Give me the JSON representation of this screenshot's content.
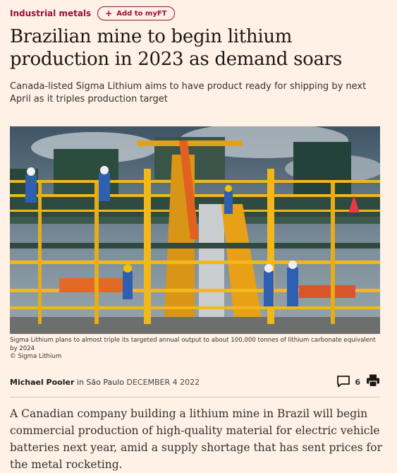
{
  "topic": {
    "label": "Industrial metals"
  },
  "myft": {
    "label": "Add to myFT",
    "icon": "plus-icon"
  },
  "headline": "Brazilian mine to begin lithium production in 2023 as demand soars",
  "standfirst": "Canada-listed Sigma Lithium aims to have product ready for shipping by next April as it triples production target",
  "image": {
    "caption": "Sigma Lithium plans to almost triple its targeted annual output to about 100,000 tonnes of lithium carbonate equivalent by 2024",
    "credit": "© Sigma Lithium"
  },
  "byline": {
    "author": "Michael Pooler",
    "location": " in São Paulo ",
    "date": "DECEMBER 4 2022"
  },
  "tools": {
    "comment_count": "6",
    "comment_icon": "comment-icon",
    "print_icon": "printer-icon"
  },
  "body": {
    "paragraph": "A Canadian company building a lithium mine in Brazil will begin commercial production of high-quality material for electric vehicle batteries next year, amid a supply shortage that has sent prices for the metal rocketing."
  },
  "colors": {
    "background": "#FFF1E5",
    "accent": "#990F3D",
    "text": "#33302E"
  }
}
